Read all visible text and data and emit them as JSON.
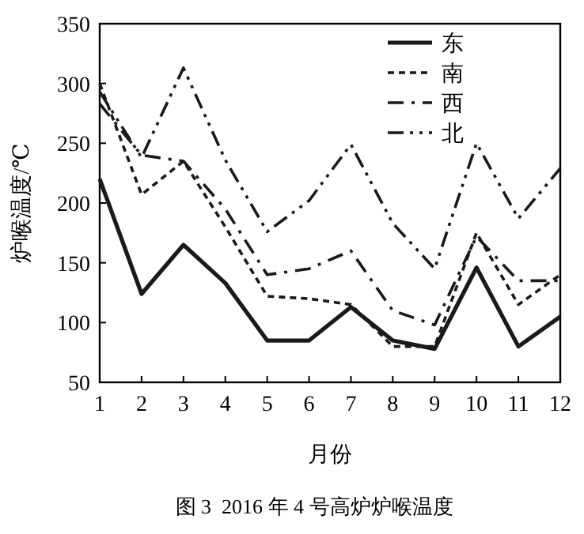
{
  "chart_data": {
    "type": "line",
    "ylabel": "炉喉温度/℃",
    "xlabel": "月份",
    "annotations": [
      "图 3  2016 年 4 号高炉炉喉温度"
    ],
    "x": [
      1,
      2,
      3,
      4,
      5,
      6,
      7,
      8,
      9,
      10,
      11,
      12
    ],
    "xlim": [
      1,
      12
    ],
    "xticks": [
      1,
      2,
      3,
      4,
      5,
      6,
      7,
      8,
      9,
      10,
      11,
      12
    ],
    "ylim": [
      50,
      350
    ],
    "yticks": [
      50,
      100,
      150,
      200,
      250,
      300,
      350
    ],
    "grid": false,
    "legend": "top right",
    "series": [
      {
        "name": "东",
        "color": "#1a1a1a",
        "line_style": "solid",
        "values": [
          220,
          124,
          165,
          133,
          85,
          85,
          113,
          85,
          78,
          146,
          80,
          105
        ]
      },
      {
        "name": "南",
        "color": "#1a1a1a",
        "line_style": "dotted",
        "values": [
          300,
          207,
          235,
          180,
          122,
          120,
          115,
          80,
          80,
          175,
          115,
          140
        ]
      },
      {
        "name": "西",
        "color": "#1a1a1a",
        "line_style": "dashdot",
        "values": [
          283,
          240,
          235,
          195,
          140,
          145,
          160,
          110,
          98,
          172,
          135,
          135
        ]
      },
      {
        "name": "北",
        "color": "#1a1a1a",
        "line_style": "dashdotdot",
        "values": [
          293,
          238,
          313,
          236,
          176,
          202,
          249,
          183,
          145,
          250,
          187,
          229
        ]
      }
    ]
  }
}
